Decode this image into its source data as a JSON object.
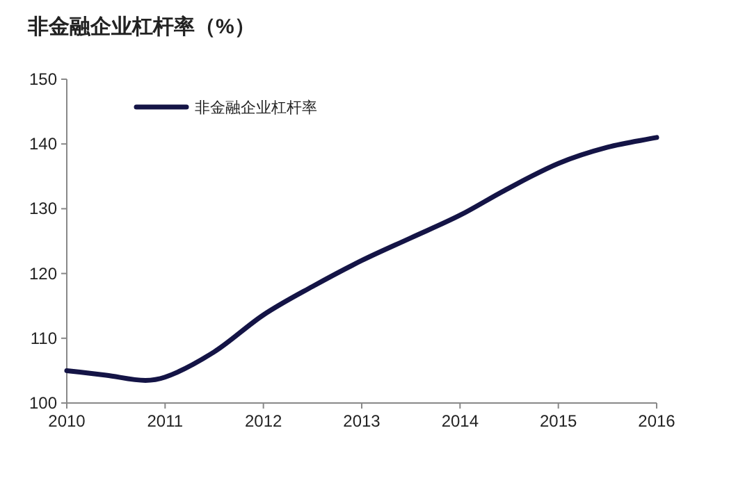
{
  "chart_data": {
    "type": "line",
    "title": "非金融企业杠杆率（%）",
    "x": [
      2010,
      2010.4,
      2010.8,
      2011,
      2011.5,
      2012,
      2012.5,
      2013,
      2013.5,
      2014,
      2014.45,
      2015,
      2015.5,
      2016
    ],
    "series": [
      {
        "name": "非金融企业杠杆率",
        "color": "#141446",
        "values": [
          105,
          104.3,
          103.5,
          104,
          107.9,
          113.6,
          118,
          122,
          125.5,
          129,
          132.8,
          137,
          139.5,
          141
        ]
      }
    ],
    "xlim": [
      2010,
      2016
    ],
    "ylim": [
      100,
      150
    ],
    "xticks": [
      2010,
      2011,
      2012,
      2013,
      2014,
      2015,
      2016
    ],
    "yticks": [
      100,
      110,
      120,
      130,
      140,
      150
    ],
    "legend": "top left",
    "line_style": "solid",
    "grid": false
  }
}
